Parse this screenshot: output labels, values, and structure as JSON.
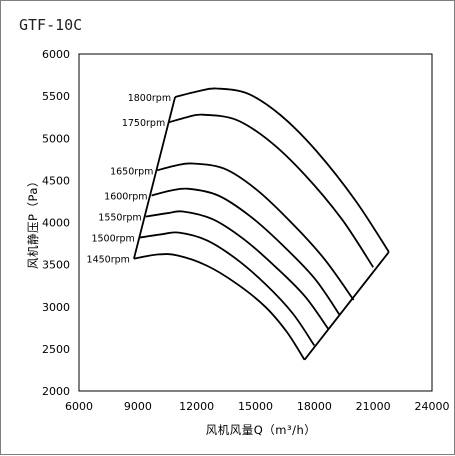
{
  "chart_data": {
    "type": "line",
    "title": "GTF-10C",
    "xlabel": "风机风量Q（m³/h）",
    "ylabel": "风机静压P（Pa）",
    "xlim": [
      6000,
      24000
    ],
    "ylim": [
      2000,
      6000
    ],
    "x_ticks": [
      "6000",
      "9000",
      "12000",
      "15000",
      "18000",
      "21000",
      "24000"
    ],
    "y_ticks": [
      "2000",
      "2500",
      "3000",
      "3500",
      "4000",
      "4500",
      "5000",
      "5500",
      "6000"
    ],
    "grid": false,
    "series": [
      {
        "name": "1450rpm",
        "points": [
          [
            8800,
            3570
          ],
          [
            10000,
            3620
          ],
          [
            11000,
            3610
          ],
          [
            12500,
            3490
          ],
          [
            14000,
            3280
          ],
          [
            15500,
            3000
          ],
          [
            16600,
            2700
          ],
          [
            17500,
            2370
          ]
        ]
      },
      {
        "name": "1500rpm",
        "points": [
          [
            9050,
            3820
          ],
          [
            10200,
            3860
          ],
          [
            11100,
            3880
          ],
          [
            12500,
            3790
          ],
          [
            14000,
            3570
          ],
          [
            15500,
            3270
          ],
          [
            16900,
            2920
          ],
          [
            18000,
            2540
          ]
        ]
      },
      {
        "name": "1550rpm",
        "points": [
          [
            9400,
            4070
          ],
          [
            10500,
            4110
          ],
          [
            11300,
            4130
          ],
          [
            12800,
            4040
          ],
          [
            14300,
            3820
          ],
          [
            15900,
            3500
          ],
          [
            17500,
            3130
          ],
          [
            18700,
            2740
          ]
        ]
      },
      {
        "name": "1600rpm",
        "points": [
          [
            9700,
            4320
          ],
          [
            10700,
            4380
          ],
          [
            11600,
            4400
          ],
          [
            13100,
            4320
          ],
          [
            14700,
            4080
          ],
          [
            16300,
            3750
          ],
          [
            18000,
            3340
          ],
          [
            19300,
            2900
          ]
        ]
      },
      {
        "name": "1650rpm",
        "points": [
          [
            10000,
            4620
          ],
          [
            11000,
            4680
          ],
          [
            11800,
            4700
          ],
          [
            13400,
            4640
          ],
          [
            15000,
            4400
          ],
          [
            16700,
            4030
          ],
          [
            18500,
            3570
          ],
          [
            20000,
            3080
          ]
        ]
      },
      {
        "name": "1750rpm",
        "points": [
          [
            10600,
            5190
          ],
          [
            11500,
            5250
          ],
          [
            12300,
            5280
          ],
          [
            14000,
            5220
          ],
          [
            15700,
            4970
          ],
          [
            17500,
            4570
          ],
          [
            19400,
            4040
          ],
          [
            21000,
            3470
          ]
        ]
      },
      {
        "name": "1800rpm",
        "points": [
          [
            10900,
            5490
          ],
          [
            12100,
            5560
          ],
          [
            13000,
            5590
          ],
          [
            14600,
            5530
          ],
          [
            16300,
            5270
          ],
          [
            18100,
            4850
          ],
          [
            20100,
            4260
          ],
          [
            21800,
            3650
          ]
        ]
      }
    ],
    "boundary": [
      {
        "name": "left",
        "points": [
          [
            8800,
            3570
          ],
          [
            10900,
            5490
          ]
        ]
      },
      {
        "name": "right",
        "points": [
          [
            17500,
            2370
          ],
          [
            21800,
            3650
          ]
        ]
      }
    ],
    "legend": "none"
  }
}
